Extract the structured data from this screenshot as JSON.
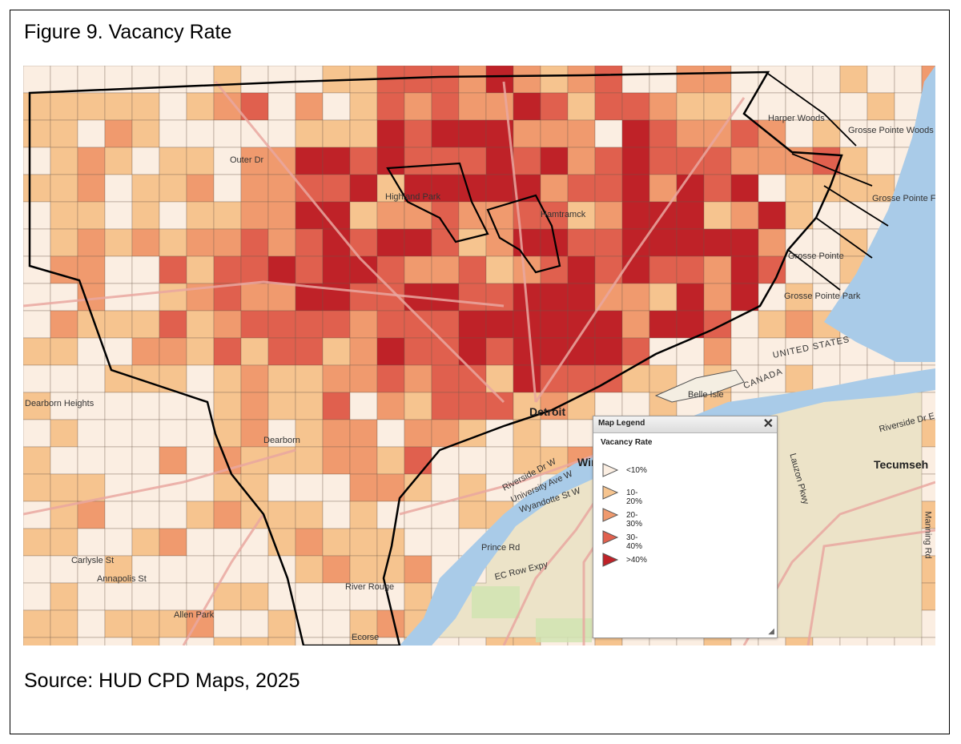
{
  "figure": {
    "title": "Figure 9. Vacancy Rate",
    "source": "Source: HUD CPD Maps, 2025"
  },
  "map": {
    "place_labels": [
      "Highland Park",
      "Hamtramck",
      "Detroit",
      "Dearborn",
      "Allen Park",
      "Grosse Pointe Woods",
      "Grosse Pointe Farms",
      "Grosse Pointe",
      "Grosse Pointe Park",
      "Harper Woods",
      "Tecumseh",
      "Windsor",
      "Belle Isle",
      "River Rouge",
      "Ecorse",
      "UNITED STATES",
      "CANADA",
      "Riverside Dr E",
      "Riverside Dr W",
      "University Ave W",
      "Wyandotte St W",
      "Prince Rd",
      "EC Row Expy",
      "Manning Rd",
      "Lauzon Pkwy",
      "Annapolis St",
      "Carlysle St",
      "Outer Dr",
      "Dearborn Heights"
    ],
    "colors": {
      "water": "#a9cbe8",
      "land_us": "#f4eee2",
      "land_canada": "#ece3c8",
      "park": "#cfe3b0",
      "road_major": "#e9a7a0",
      "boundary": "#000000"
    }
  },
  "legend": {
    "header": "Map Legend",
    "close_label": "✕",
    "subtitle": "Vacancy Rate",
    "items": [
      {
        "label": "<10%",
        "color": "#fbeee2"
      },
      {
        "label": "10-20%",
        "color": "#f6c48f"
      },
      {
        "label": "20-30%",
        "color": "#f09a6e"
      },
      {
        "label": "30-40%",
        "color": "#e0604e"
      },
      {
        "label": ">40%",
        "color": "#bf2228"
      }
    ],
    "resize_label": "◢"
  }
}
